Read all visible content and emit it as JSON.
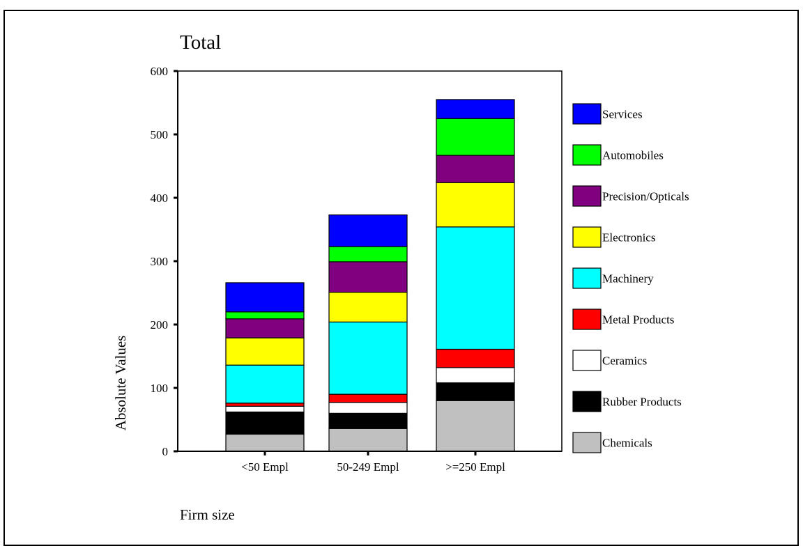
{
  "chart_data": {
    "type": "bar",
    "stacked": true,
    "title": "Total",
    "xlabel": "Firm size",
    "ylabel": "Absolute Values",
    "categories": [
      "<50 Empl",
      "50-249 Empl",
      ">=250 Empl"
    ],
    "ylim": [
      0,
      600
    ],
    "yticks": [
      0,
      100,
      200,
      300,
      400,
      500,
      600
    ],
    "grid": false,
    "legend_position": "right",
    "series": [
      {
        "name": "Chemicals",
        "color": "#c0c0c0",
        "values": [
          27,
          36,
          80
        ]
      },
      {
        "name": "Rubber Products",
        "color": "#000000",
        "values": [
          35,
          24,
          28
        ]
      },
      {
        "name": "Ceramics",
        "color": "#ffffff",
        "values": [
          9,
          17,
          24
        ]
      },
      {
        "name": "Metal Products",
        "color": "#ff0000",
        "values": [
          5,
          13,
          29
        ]
      },
      {
        "name": "Machinery",
        "color": "#00ffff",
        "values": [
          60,
          114,
          193
        ]
      },
      {
        "name": "Electronics",
        "color": "#ffff00",
        "values": [
          43,
          47,
          70
        ]
      },
      {
        "name": "Precision/Opticals",
        "color": "#800080",
        "values": [
          30,
          48,
          43
        ]
      },
      {
        "name": "Automobiles",
        "color": "#00ff00",
        "values": [
          11,
          24,
          58
        ]
      },
      {
        "name": "Services",
        "color": "#0000ff",
        "values": [
          46,
          50,
          30
        ]
      }
    ]
  }
}
